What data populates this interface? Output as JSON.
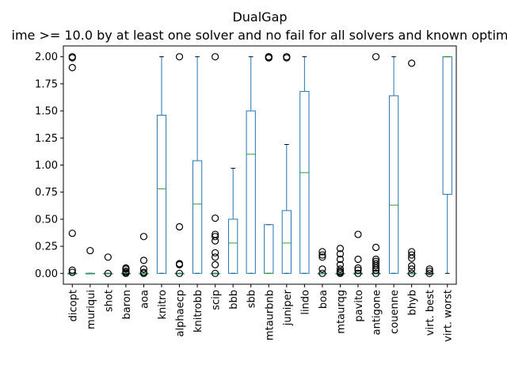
{
  "chart_data": {
    "type": "box",
    "title": "DualGap",
    "subtitle": "ime >= 10.0 by at least one solver and no fail for all solvers and known optim",
    "xlabel": "",
    "ylabel": "",
    "ylim": [
      -0.1,
      2.1
    ],
    "yticks": [
      0.0,
      0.25,
      0.5,
      0.75,
      1.0,
      1.25,
      1.5,
      1.75,
      2.0
    ],
    "ytick_labels": [
      "0.00",
      "0.25",
      "0.50",
      "0.75",
      "1.00",
      "1.25",
      "1.50",
      "1.75",
      "2.00"
    ],
    "grid": false,
    "box_color": "#1f77b4",
    "median_color": "#2ca02c",
    "categories": [
      "dicopt",
      "muriqui",
      "shot",
      "baron",
      "aoa",
      "knitro",
      "alphaecp",
      "knitrobb",
      "scip",
      "bbb",
      "sbb",
      "mtaurbnb",
      "juniper",
      "lindo",
      "boa",
      "mtaurqg",
      "pavito",
      "antigone",
      "couenne",
      "bhyb",
      "virt. best",
      "virt. worst"
    ],
    "series": [
      {
        "q1": 0.0,
        "median": 0.0,
        "q3": 0.0,
        "whisker_low": 0.0,
        "whisker_high": 0.0,
        "outliers": [
          2.0,
          1.99,
          1.9,
          0.37,
          0.03,
          0.01
        ]
      },
      {
        "q1": 0.0,
        "median": 0.0,
        "q3": 0.0,
        "whisker_low": 0.0,
        "whisker_high": 0.0,
        "outliers": [
          0.21
        ]
      },
      {
        "q1": 0.0,
        "median": 0.0,
        "q3": 0.0,
        "whisker_low": 0.0,
        "whisker_high": 0.0,
        "outliers": [
          0.15,
          0.0
        ]
      },
      {
        "q1": 0.0,
        "median": 0.0,
        "q3": 0.0,
        "whisker_low": 0.0,
        "whisker_high": 0.0,
        "outliers": [
          0.05,
          0.04,
          0.02,
          0.01,
          0.0
        ]
      },
      {
        "q1": 0.0,
        "median": 0.0,
        "q3": 0.0,
        "whisker_low": 0.0,
        "whisker_high": 0.0,
        "outliers": [
          0.34,
          0.12,
          0.04,
          0.01,
          0.0
        ]
      },
      {
        "q1": 0.0,
        "median": 0.78,
        "q3": 1.46,
        "whisker_low": 0.0,
        "whisker_high": 2.0,
        "outliers": []
      },
      {
        "q1": 0.0,
        "median": 0.0,
        "q3": 0.0,
        "whisker_low": 0.0,
        "whisker_high": 0.0,
        "outliers": [
          2.0,
          0.43,
          0.09,
          0.08,
          0.0
        ]
      },
      {
        "q1": 0.0,
        "median": 0.64,
        "q3": 1.04,
        "whisker_low": 0.0,
        "whisker_high": 2.0,
        "outliers": []
      },
      {
        "q1": 0.0,
        "median": 0.0,
        "q3": 0.0,
        "whisker_low": 0.0,
        "whisker_high": 0.0,
        "outliers": [
          2.0,
          0.51,
          0.36,
          0.34,
          0.3,
          0.19,
          0.15,
          0.08,
          0.0
        ]
      },
      {
        "q1": 0.0,
        "median": 0.28,
        "q3": 0.5,
        "whisker_low": 0.0,
        "whisker_high": 0.97,
        "outliers": []
      },
      {
        "q1": 0.0,
        "median": 1.1,
        "q3": 1.5,
        "whisker_low": 0.0,
        "whisker_high": 2.0,
        "outliers": []
      },
      {
        "q1": 0.0,
        "median": 0.0,
        "q3": 0.45,
        "whisker_low": 0.0,
        "whisker_high": 0.45,
        "outliers": [
          2.0,
          2.0,
          1.99,
          1.99
        ]
      },
      {
        "q1": 0.0,
        "median": 0.28,
        "q3": 0.58,
        "whisker_low": 0.0,
        "whisker_high": 1.19,
        "outliers": [
          2.0,
          1.99
        ]
      },
      {
        "q1": 0.0,
        "median": 0.93,
        "q3": 1.68,
        "whisker_low": 0.0,
        "whisker_high": 2.0,
        "outliers": []
      },
      {
        "q1": 0.0,
        "median": 0.0,
        "q3": 0.0,
        "whisker_low": 0.0,
        "whisker_high": 0.0,
        "outliers": [
          0.2,
          0.17,
          0.15,
          0.04,
          0.0
        ]
      },
      {
        "q1": 0.0,
        "median": 0.0,
        "q3": 0.0,
        "whisker_low": 0.0,
        "whisker_high": 0.0,
        "outliers": [
          0.23,
          0.18,
          0.13,
          0.08,
          0.04,
          0.02,
          0.01,
          0.0
        ]
      },
      {
        "q1": 0.0,
        "median": 0.0,
        "q3": 0.0,
        "whisker_low": 0.0,
        "whisker_high": 0.0,
        "outliers": [
          0.36,
          0.13,
          0.05,
          0.03,
          0.0
        ]
      },
      {
        "q1": 0.0,
        "median": 0.0,
        "q3": 0.0,
        "whisker_low": 0.0,
        "whisker_high": 0.0,
        "outliers": [
          2.0,
          0.24,
          0.13,
          0.11,
          0.09,
          0.07,
          0.05,
          0.03,
          0.0
        ]
      },
      {
        "q1": 0.0,
        "median": 0.63,
        "q3": 1.64,
        "whisker_low": 0.0,
        "whisker_high": 2.0,
        "outliers": []
      },
      {
        "q1": 0.0,
        "median": 0.0,
        "q3": 0.0,
        "whisker_low": 0.0,
        "whisker_high": 0.0,
        "outliers": [
          1.94,
          0.2,
          0.17,
          0.14,
          0.07,
          0.04,
          0.0
        ]
      },
      {
        "q1": 0.0,
        "median": 0.0,
        "q3": 0.0,
        "whisker_low": 0.0,
        "whisker_high": 0.0,
        "outliers": [
          0.04,
          0.02,
          0.0
        ]
      },
      {
        "q1": 0.73,
        "median": 2.0,
        "q3": 2.0,
        "whisker_low": 0.0,
        "whisker_high": 2.0,
        "outliers": []
      }
    ]
  }
}
